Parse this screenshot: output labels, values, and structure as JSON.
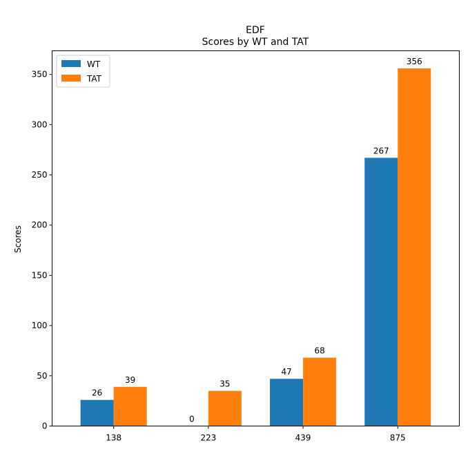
{
  "chart_data": {
    "type": "bar",
    "title": "EDF",
    "subtitle": "Scores by WT and TAT",
    "xlabel": "",
    "ylabel": "Scores",
    "categories": [
      "138",
      "223",
      "439",
      "875"
    ],
    "series": [
      {
        "name": "WT",
        "values": [
          26,
          0,
          47,
          267
        ],
        "color": "#1f77b4"
      },
      {
        "name": "TAT",
        "values": [
          39,
          35,
          68,
          356
        ],
        "color": "#ff7f0e"
      }
    ],
    "ylim": [
      0,
      373.5
    ],
    "yticks": [
      0,
      50,
      100,
      150,
      200,
      250,
      300,
      350
    ],
    "grid": false,
    "legend_position": "top-left"
  }
}
